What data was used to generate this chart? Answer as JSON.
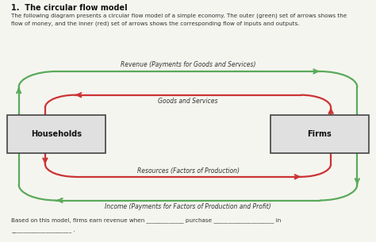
{
  "title": "1.  The circular flow model",
  "desc1": "The following diagram presents a circular flow model of a simple economy. The outer (green) set of arrows shows the",
  "desc2": "flow of money, and the inner (red) set of arrows shows the corresponding flow of inputs and outputs.",
  "box_left_label": "Households",
  "box_right_label": "Firms",
  "top_outer_label": "Revenue (Payments for Goods and Services)",
  "top_inner_label": "Goods and Services",
  "bottom_inner_label": "Resources (Factors of Production)",
  "bottom_outer_label": "Income (Payments for Factors of Production and Profit)",
  "footer1": "Based on this model, firms earn revenue when _____________ purchase _____________________ in",
  "footer2": "_____________________ .",
  "green_color": "#5aaa5a",
  "red_color": "#cc3333",
  "box_fill": "#e0e0e0",
  "box_edge": "#444444",
  "text_color": "#333333",
  "bg_color": "#f5f5f0"
}
